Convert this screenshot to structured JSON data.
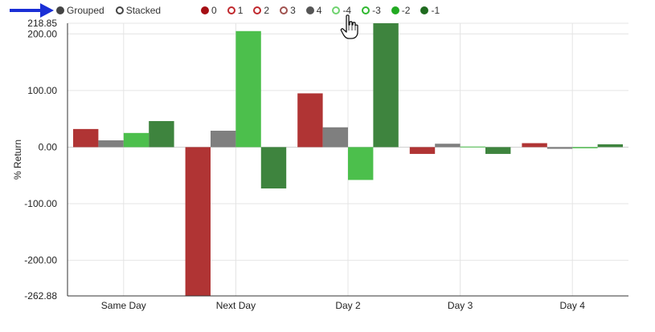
{
  "controls": {
    "grouped_label": "Grouped",
    "stacked_label": "Stacked",
    "selected": "grouped"
  },
  "legend": [
    {
      "label": "0",
      "color": "#a50f15",
      "filled": true
    },
    {
      "label": "1",
      "color": "#c0282d",
      "filled": false
    },
    {
      "label": "2",
      "color": "#c0282d",
      "filled": false
    },
    {
      "label": "3",
      "color": "#a0524f",
      "filled": false
    },
    {
      "label": "4",
      "color": "#555555",
      "filled": true
    },
    {
      "label": "-4",
      "color": "#6fd36f",
      "filled": false
    },
    {
      "label": "-3",
      "color": "#2fb82f",
      "filled": false
    },
    {
      "label": "-2",
      "color": "#22aa22",
      "filled": true
    },
    {
      "label": "-1",
      "color": "#1f6b1f",
      "filled": true
    }
  ],
  "icons": {
    "pointer_arrow": "blue-arrow-icon",
    "cursor": "hand-pointer-icon"
  },
  "chart_data": {
    "type": "bar",
    "categories": [
      "Same Day",
      "Next Day",
      "Day 2",
      "Day 3",
      "Day 4"
    ],
    "series": [
      {
        "name": "0",
        "color": "#b03434",
        "values": [
          32,
          -262.88,
          95,
          -12,
          7
        ]
      },
      {
        "name": "4",
        "color": "#7f7f7f",
        "values": [
          12,
          29,
          35,
          6,
          -3
        ]
      },
      {
        "name": "-2",
        "color": "#4cbf4c",
        "values": [
          25,
          205,
          -58,
          1,
          -2
        ]
      },
      {
        "name": "-1",
        "color": "#3e843e",
        "values": [
          46,
          -73,
          218.85,
          -12,
          5
        ]
      }
    ],
    "ylabel": "% Return",
    "xlabel": "",
    "ylim": [
      -262.88,
      218.85
    ],
    "yticks": [
      "218.85",
      "200.00",
      "100.00",
      "0.00",
      "-100.00",
      "-200.00",
      "-262.88"
    ],
    "ytick_values": [
      218.85,
      200,
      100,
      0,
      -100,
      -200,
      -262.88
    ],
    "grid": true
  }
}
